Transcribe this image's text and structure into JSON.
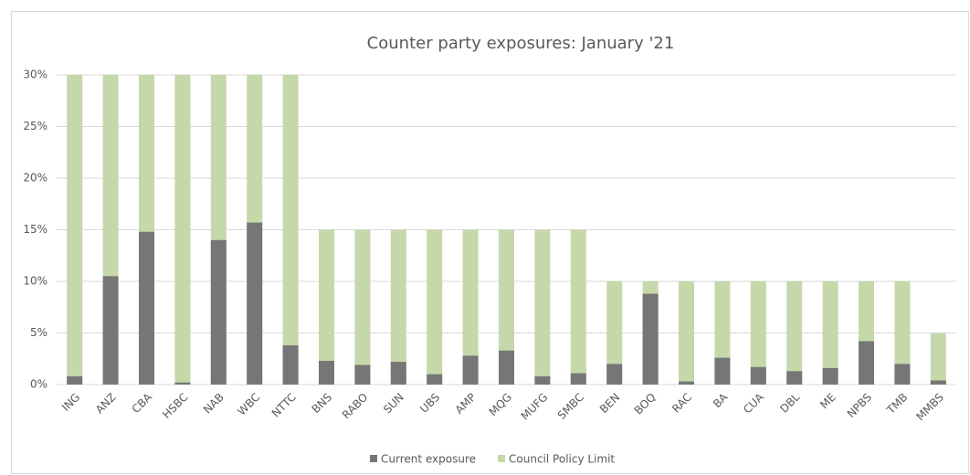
{
  "chart_data": {
    "type": "bar",
    "stacked": false,
    "overlap": true,
    "title": "Counter party exposures: January '21",
    "categories": [
      "ING",
      "ANZ",
      "CBA",
      "HSBC",
      "NAB",
      "WBC",
      "NTTC",
      "BNS",
      "RABO",
      "SUN",
      "UBS",
      "AMP",
      "MQG",
      "MUFG",
      "SMBC",
      "BEN",
      "BOQ",
      "RAC",
      "BA",
      "CUA",
      "DBL",
      "ME",
      "NPBS",
      "TMB",
      "MMBS"
    ],
    "series": [
      {
        "name": "Council Policy Limit",
        "color": "#c5d8aa",
        "values": [
          30,
          30,
          30,
          30,
          30,
          30,
          30,
          15,
          15,
          15,
          15,
          15,
          15,
          15,
          15,
          10,
          10,
          10,
          10,
          10,
          10,
          10,
          10,
          10,
          5
        ]
      },
      {
        "name": "Current exposure",
        "color": "#767676",
        "values": [
          0.8,
          10.5,
          14.8,
          0.2,
          14,
          15.7,
          3.8,
          2.3,
          1.9,
          2.2,
          1.0,
          2.8,
          3.3,
          0.8,
          1.1,
          2.0,
          8.8,
          0.3,
          2.6,
          1.7,
          1.3,
          1.6,
          4.2,
          2.0,
          0.4
        ]
      }
    ],
    "legend_order": [
      1,
      0
    ],
    "ylim": [
      0,
      30
    ],
    "yticks": [
      {
        "value": 0,
        "label": "0%"
      },
      {
        "value": 5,
        "label": "5%"
      },
      {
        "value": 10,
        "label": "10%"
      },
      {
        "value": 15,
        "label": "15%"
      },
      {
        "value": 20,
        "label": "20%"
      },
      {
        "value": 25,
        "label": "25%"
      },
      {
        "value": 30,
        "label": "30%"
      }
    ],
    "grid": true,
    "legend": "bottom"
  }
}
